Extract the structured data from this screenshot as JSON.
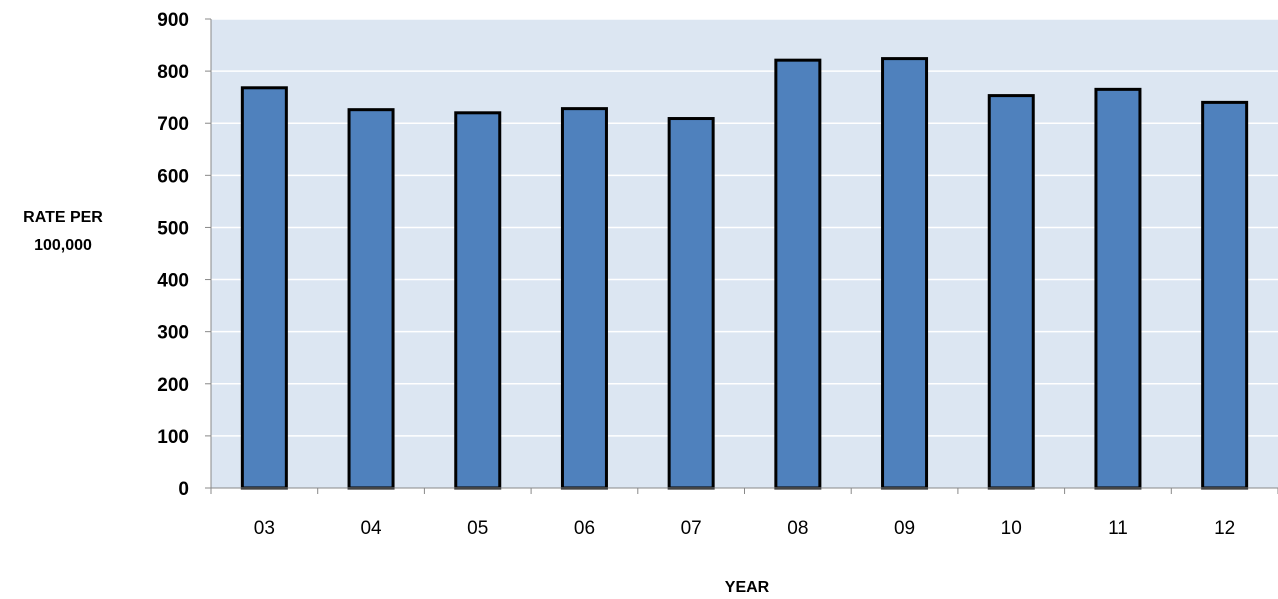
{
  "chart_data": {
    "type": "bar",
    "categories": [
      "03",
      "04",
      "05",
      "06",
      "07",
      "08",
      "09",
      "10",
      "11",
      "12"
    ],
    "values": [
      768,
      726,
      720,
      728,
      709,
      821,
      824,
      753,
      765,
      740
    ],
    "xlabel": "YEAR",
    "ylabel_lines": [
      "RATE PER",
      "100,000"
    ],
    "ylim": [
      0,
      900
    ],
    "yticks": [
      0,
      100,
      200,
      300,
      400,
      500,
      600,
      700,
      800,
      900
    ],
    "grid": true,
    "legend": "none",
    "colors": {
      "bar_fill": "#4f81bd",
      "bar_edge": "#000000",
      "plot_background": "#dce6f2",
      "gridline": "#ffffff",
      "axis": "#888888"
    }
  }
}
